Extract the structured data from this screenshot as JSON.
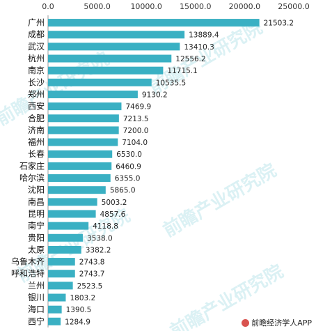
{
  "chart_data": {
    "type": "bar",
    "orientation": "horizontal",
    "title": "",
    "xlabel": "",
    "ylabel": "",
    "xlim": [
      0,
      25000
    ],
    "x_ticks": [
      "0.0",
      "5000.0",
      "10000.0",
      "15000.0",
      "20000.0",
      "25000.0"
    ],
    "x_axis_position": "top",
    "grid": false,
    "bar_color": "#3ab0c3",
    "categories": [
      "广州",
      "成都",
      "武汉",
      "杭州",
      "南京",
      "长沙",
      "郑州",
      "西安",
      "合肥",
      "济南",
      "福州",
      "长春",
      "石家庄",
      "哈尔滨",
      "沈阳",
      "南昌",
      "昆明",
      "南宁",
      "贵阳",
      "太原",
      "乌鲁木齐",
      "呼和浩特",
      "兰州",
      "银川",
      "海口",
      "西宁"
    ],
    "values": [
      21503.2,
      13889.4,
      13410.3,
      12556.2,
      11715.1,
      10535.5,
      9130.2,
      7469.9,
      7213.5,
      7200.0,
      7104.0,
      6530.0,
      6460.9,
      6355.0,
      5865.0,
      5003.2,
      4857.6,
      4118.8,
      3538.0,
      3382.2,
      2743.8,
      2743.7,
      2523.5,
      1803.2,
      1390.5,
      1284.9
    ],
    "value_labels": [
      "21503.2",
      "13889.4",
      "13410.3",
      "12556.2",
      "11715.1",
      "10535.5",
      "9130.2",
      "7469.9",
      "7213.5",
      "7200.0",
      "7104.0",
      "6530.0",
      "6460.9",
      "6355.0",
      "5865.0",
      "5003.2",
      "4857.6",
      "4118.8",
      "3538.0",
      "3382.2",
      "2743.8",
      "2743.7",
      "2523.5",
      "1803.2",
      "1390.5",
      "1284.9"
    ]
  },
  "watermark": {
    "text": "前瞻产业研究院"
  },
  "credit": {
    "icon": "brand-logo-icon",
    "text": "前瞻经济学人APP"
  }
}
